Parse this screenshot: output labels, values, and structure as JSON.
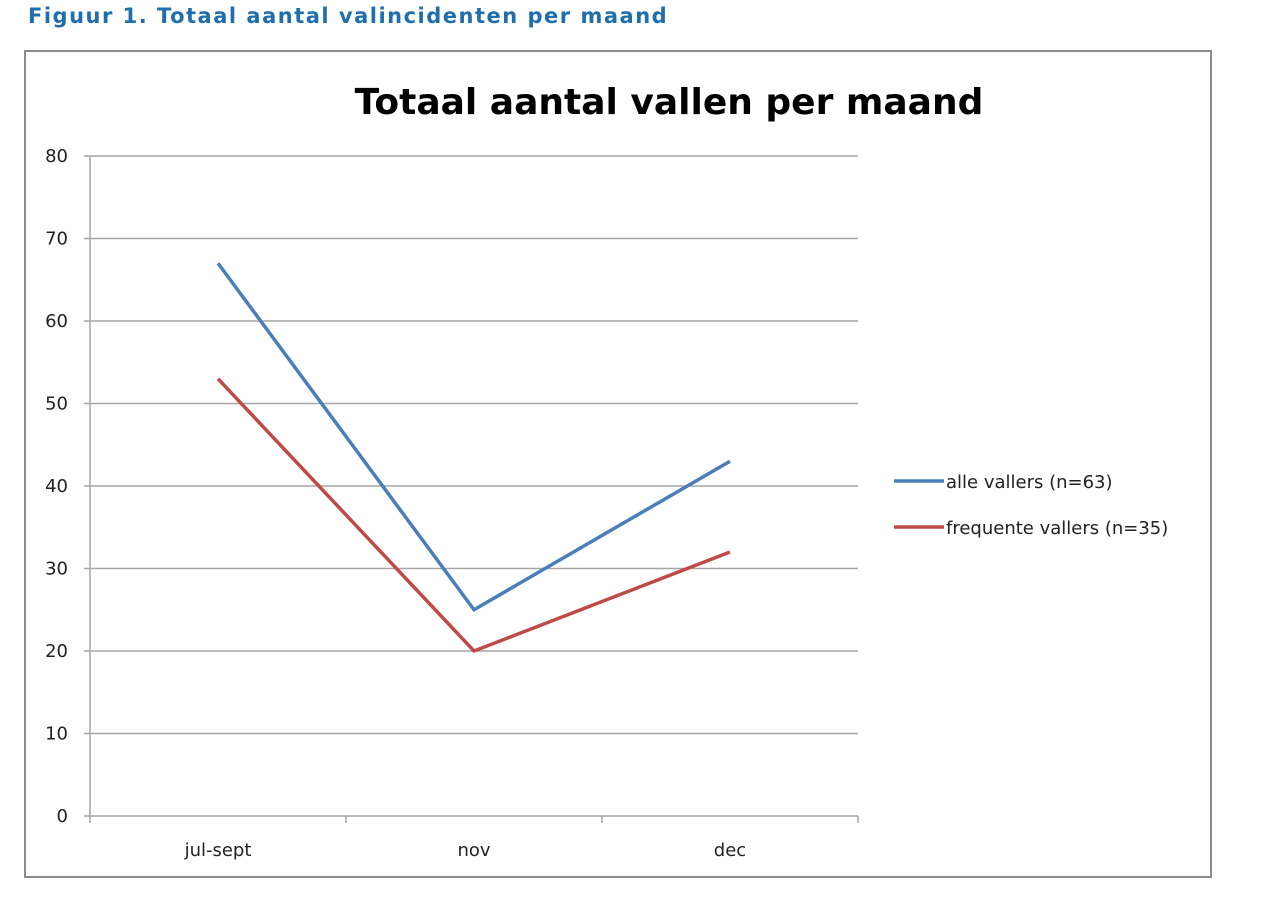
{
  "caption": "Figuur 1.   Totaal aantal valincidenten per maand",
  "colors": {
    "caption": "#1f6fae",
    "series_1": "#4a7ebb",
    "series_2": "#be4b48",
    "grid": "#a6a6a6"
  },
  "chart_data": {
    "type": "line",
    "title": "Totaal aantal vallen per maand",
    "xlabel": "",
    "ylabel": "",
    "categories": [
      "jul-sept",
      "nov",
      "dec"
    ],
    "ylim": [
      0,
      80
    ],
    "yticks": [
      0,
      10,
      20,
      30,
      40,
      50,
      60,
      70,
      80
    ],
    "grid": true,
    "legend_position": "right",
    "series": [
      {
        "name": "alle vallers (n=63)",
        "values": [
          67,
          25,
          43
        ],
        "color": "#4a7ebb"
      },
      {
        "name": "frequente vallers (n=35)",
        "values": [
          53,
          20,
          32
        ],
        "color": "#be4b48"
      }
    ]
  }
}
